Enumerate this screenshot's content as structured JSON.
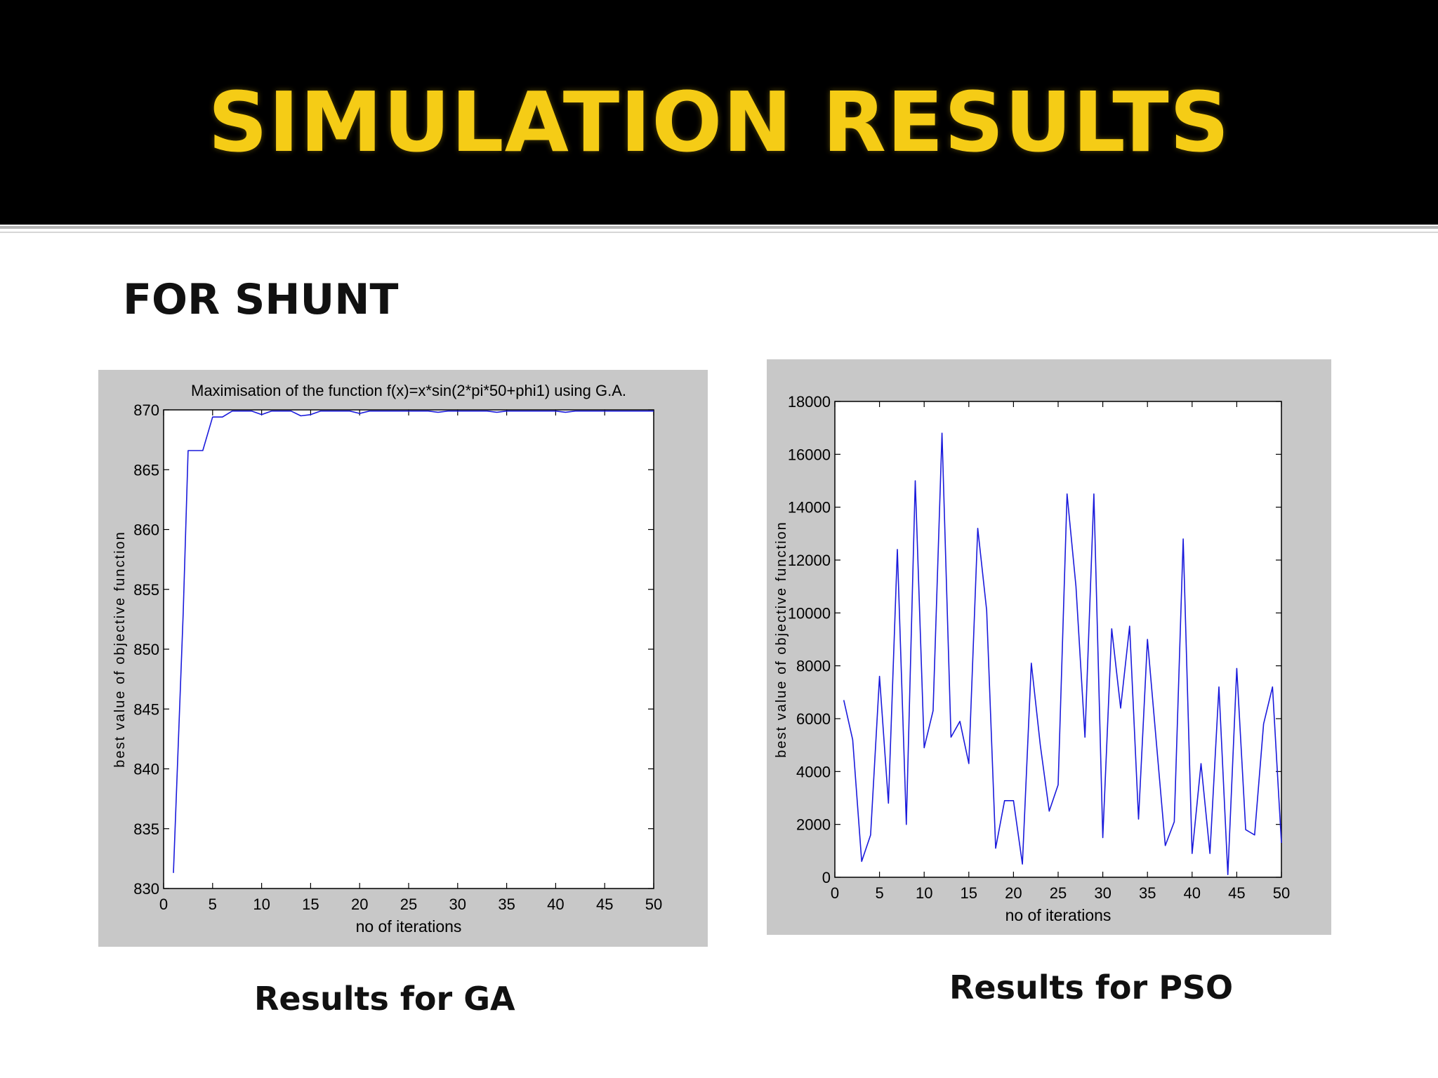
{
  "slide": {
    "title": "SIMULATION RESULTS",
    "subtitle": "FOR SHUNT",
    "caption_left": "Results for GA",
    "caption_right": "Results for PSO",
    "colors": {
      "banner": "#000000",
      "title": "#f5cc16",
      "panel": "#c8c8c8",
      "line": "#1a1adc"
    }
  },
  "chart_data": [
    {
      "type": "line",
      "title": "Maximisation of the function f(x)=x*sin(2*pi*50+phi1) using G.A.",
      "xlabel": "no of iterations",
      "ylabel": "best value of objective function",
      "xlim": [
        0,
        50
      ],
      "ylim": [
        830,
        870
      ],
      "xticks": [
        "0",
        "5",
        "10",
        "15",
        "20",
        "25",
        "30",
        "35",
        "40",
        "45",
        "50"
      ],
      "yticks": [
        "830",
        "835",
        "840",
        "845",
        "850",
        "855",
        "860",
        "865",
        "870"
      ],
      "grid": false,
      "series": [
        {
          "x": [
            1,
            2,
            2.5,
            3,
            4,
            5,
            6,
            7,
            8,
            9,
            10,
            11,
            12,
            13,
            14,
            15,
            16,
            17,
            18,
            19,
            20,
            21,
            22,
            23,
            24,
            25,
            26,
            27,
            28,
            29,
            30,
            31,
            32,
            33,
            34,
            35,
            36,
            37,
            38,
            39,
            40,
            41,
            42,
            43,
            44,
            45,
            46,
            47,
            48,
            49,
            50
          ],
          "y": [
            831.3,
            853,
            866.6,
            866.6,
            866.6,
            869.4,
            869.4,
            869.9,
            869.9,
            869.9,
            869.6,
            869.9,
            869.9,
            869.9,
            869.5,
            869.6,
            869.9,
            869.9,
            869.9,
            869.9,
            869.7,
            869.9,
            869.9,
            869.9,
            869.9,
            869.9,
            869.9,
            869.9,
            869.8,
            869.9,
            869.9,
            869.9,
            869.9,
            869.9,
            869.8,
            869.9,
            869.9,
            869.9,
            869.9,
            869.9,
            869.9,
            869.8,
            869.9,
            869.9,
            869.9,
            869.9,
            869.9,
            869.9,
            869.9,
            869.9,
            869.9
          ]
        }
      ]
    },
    {
      "type": "line",
      "title": "",
      "xlabel": "no of iterations",
      "ylabel": "best value of objective function",
      "xlim": [
        0,
        50
      ],
      "ylim": [
        0,
        18000
      ],
      "xticks": [
        "0",
        "5",
        "10",
        "15",
        "20",
        "25",
        "30",
        "35",
        "40",
        "45",
        "50"
      ],
      "yticks": [
        "0",
        "2000",
        "4000",
        "6000",
        "8000",
        "10000",
        "12000",
        "14000",
        "16000",
        "18000"
      ],
      "grid": false,
      "series": [
        {
          "x": [
            1,
            2,
            3,
            4,
            5,
            6,
            7,
            8,
            9,
            10,
            11,
            12,
            13,
            14,
            15,
            16,
            17,
            18,
            19,
            20,
            21,
            22,
            23,
            24,
            25,
            26,
            27,
            28,
            29,
            30,
            31,
            32,
            33,
            34,
            35,
            36,
            37,
            38,
            39,
            40,
            41,
            42,
            43,
            44,
            45,
            46,
            47,
            48,
            49,
            50
          ],
          "y": [
            6700,
            5200,
            600,
            1600,
            7600,
            2800,
            12400,
            2000,
            15000,
            4900,
            6300,
            16800,
            5300,
            5900,
            4300,
            13200,
            10100,
            1100,
            2900,
            2900,
            500,
            8100,
            5000,
            2500,
            3500,
            14500,
            11000,
            5300,
            14500,
            1500,
            9400,
            6400,
            9500,
            2200,
            9000,
            5100,
            1200,
            2100,
            12800,
            900,
            4300,
            900,
            7200,
            100,
            7900,
            1800,
            1600,
            5800,
            7200,
            1300
          ]
        }
      ]
    }
  ]
}
